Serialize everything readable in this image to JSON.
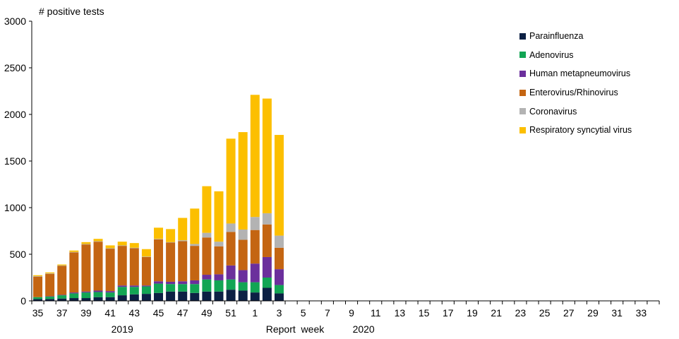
{
  "chart_data": {
    "type": "bar",
    "stacked": true,
    "ylabel": "# positive tests",
    "xlabel": "Report  week",
    "ylim": [
      0,
      3000
    ],
    "yticks": [
      0,
      500,
      1000,
      1500,
      2000,
      2500,
      3000
    ],
    "weeks": [
      "35",
      "36",
      "37",
      "38",
      "39",
      "40",
      "41",
      "42",
      "43",
      "44",
      "45",
      "46",
      "47",
      "48",
      "49",
      "50",
      "51",
      "52",
      "1",
      "2",
      "3",
      "4",
      "5",
      "6",
      "7",
      "8",
      "9",
      "10",
      "11",
      "12",
      "13",
      "14",
      "15",
      "16",
      "17",
      "18",
      "19",
      "20",
      "21",
      "22",
      "23",
      "24",
      "25",
      "26",
      "27",
      "28",
      "29",
      "30",
      "31",
      "32",
      "33",
      "34"
    ],
    "xtick_labels": [
      "35",
      "37",
      "39",
      "41",
      "43",
      "45",
      "47",
      "49",
      "51",
      "1",
      "3",
      "5",
      "7",
      "9",
      "11",
      "13",
      "15",
      "17",
      "19",
      "21",
      "23",
      "25",
      "27",
      "29",
      "31",
      "33"
    ],
    "year_labels": [
      {
        "label": "2019",
        "at_week_index": 7
      },
      {
        "label": "2020",
        "at_week_index": 27
      }
    ],
    "legend_position": "top-right",
    "series": [
      {
        "name": "Parainfluenza",
        "color": "#0c2044",
        "values": [
          20,
          20,
          25,
          30,
          30,
          40,
          40,
          60,
          70,
          75,
          85,
          100,
          100,
          85,
          100,
          100,
          120,
          110,
          90,
          140,
          80,
          null,
          null,
          null,
          null,
          null,
          null,
          null,
          null,
          null,
          null,
          null,
          null,
          null,
          null,
          null,
          null,
          null,
          null,
          null,
          null,
          null,
          null,
          null,
          null,
          null,
          null,
          null,
          null,
          null,
          null,
          null
        ]
      },
      {
        "name": "Adenovirus",
        "color": "#12a554",
        "values": [
          20,
          25,
          35,
          50,
          60,
          55,
          50,
          90,
          80,
          80,
          100,
          80,
          80,
          95,
          130,
          120,
          110,
          90,
          110,
          110,
          90,
          null,
          null,
          null,
          null,
          null,
          null,
          null,
          null,
          null,
          null,
          null,
          null,
          null,
          null,
          null,
          null,
          null,
          null,
          null,
          null,
          null,
          null,
          null,
          null,
          null,
          null,
          null,
          null,
          null,
          null,
          null
        ]
      },
      {
        "name": "Human metapneumovirus",
        "color": "#6b2f9c",
        "values": [
          0,
          5,
          5,
          10,
          10,
          15,
          15,
          15,
          15,
          10,
          25,
          25,
          30,
          40,
          50,
          65,
          150,
          130,
          200,
          220,
          170,
          null,
          null,
          null,
          null,
          null,
          null,
          null,
          null,
          null,
          null,
          null,
          null,
          null,
          null,
          null,
          null,
          null,
          null,
          null,
          null,
          null,
          null,
          null,
          null,
          null,
          null,
          null,
          null,
          null,
          null,
          null
        ]
      },
      {
        "name": "Enterovirus/Rhinovirus",
        "color": "#c46512",
        "values": [
          220,
          240,
          310,
          430,
          505,
          525,
          455,
          425,
          400,
          305,
          450,
          420,
          430,
          370,
          400,
          300,
          360,
          325,
          360,
          350,
          230,
          null,
          null,
          null,
          null,
          null,
          null,
          null,
          null,
          null,
          null,
          null,
          null,
          null,
          null,
          null,
          null,
          null,
          null,
          null,
          null,
          null,
          null,
          null,
          null,
          null,
          null,
          null,
          null,
          null,
          null,
          null
        ]
      },
      {
        "name": "Coronavirus",
        "color": "#b3b3b3",
        "values": [
          5,
          5,
          5,
          5,
          5,
          5,
          5,
          5,
          5,
          5,
          5,
          5,
          10,
          20,
          50,
          50,
          90,
          110,
          140,
          120,
          130,
          null,
          null,
          null,
          null,
          null,
          null,
          null,
          null,
          null,
          null,
          null,
          null,
          null,
          null,
          null,
          null,
          null,
          null,
          null,
          null,
          null,
          null,
          null,
          null,
          null,
          null,
          null,
          null,
          null,
          null,
          null
        ]
      },
      {
        "name": "Respiratory syncytial virus",
        "color": "#fcbf00",
        "values": [
          10,
          10,
          10,
          15,
          20,
          25,
          30,
          40,
          50,
          80,
          120,
          140,
          240,
          380,
          500,
          540,
          910,
          1045,
          1310,
          1230,
          1080,
          null,
          null,
          null,
          null,
          null,
          null,
          null,
          null,
          null,
          null,
          null,
          null,
          null,
          null,
          null,
          null,
          null,
          null,
          null,
          null,
          null,
          null,
          null,
          null,
          null,
          null,
          null,
          null,
          null,
          null,
          null
        ]
      }
    ]
  }
}
